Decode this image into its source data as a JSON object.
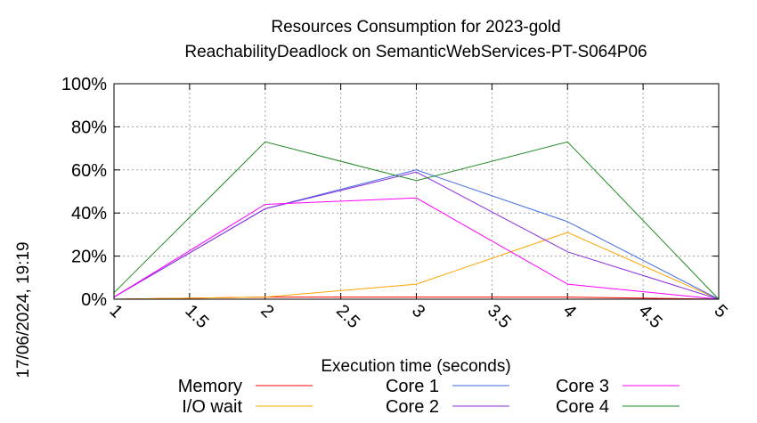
{
  "chart_data": {
    "type": "line",
    "title": "Resources Consumption for 2023-gold",
    "subtitle": "ReachabilityDeadlock on SemanticWebServices-PT-S064P06",
    "xlabel": "Execution time (seconds)",
    "ylabel": "",
    "timestamp": "17/06/2024, 19:19",
    "xlim": [
      1,
      5
    ],
    "ylim": [
      0,
      100
    ],
    "x_ticks": [
      "1",
      "1.5",
      "2",
      "2.5",
      "3",
      "3.5",
      "4",
      "4.5",
      "5"
    ],
    "y_ticks": [
      "0%",
      "20%",
      "40%",
      "60%",
      "80%",
      "100%"
    ],
    "grid": true,
    "legend_placement": "bottom",
    "x": [
      1,
      2,
      3,
      4,
      5
    ],
    "series": [
      {
        "name": "Memory",
        "color": "#ff0000",
        "values": [
          0,
          1,
          1,
          1,
          0
        ]
      },
      {
        "name": "I/O wait",
        "color": "#ffa500",
        "values": [
          0,
          1,
          7,
          31,
          0
        ]
      },
      {
        "name": "Core 1",
        "color": "#4169e1",
        "values": [
          1,
          42,
          60,
          36,
          0
        ]
      },
      {
        "name": "Core 2",
        "color": "#8a2be2",
        "values": [
          1,
          42,
          59,
          22,
          0
        ]
      },
      {
        "name": "Core 3",
        "color": "#ff00ff",
        "values": [
          1,
          44,
          47,
          7,
          0
        ]
      },
      {
        "name": "Core 4",
        "color": "#228b22",
        "values": [
          3,
          73,
          55,
          73,
          0
        ]
      }
    ]
  }
}
